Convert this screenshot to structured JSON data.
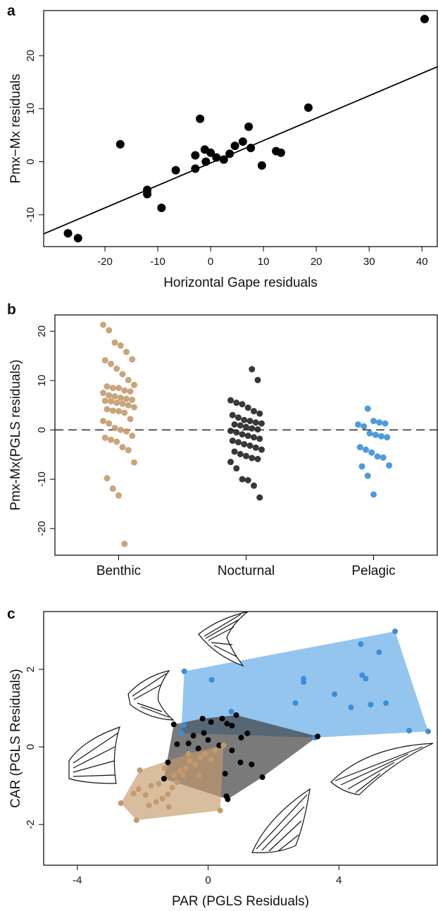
{
  "chart_data": [
    {
      "type": "scatter",
      "panel": "a",
      "x_label": "Horizontal Gape residuals",
      "y_label": "Pmx−Mx residuals",
      "color": "#000000",
      "x": [
        40.5,
        -27.0,
        -25.1,
        -17.1,
        -12.0,
        -12.0,
        -9.3,
        -6.6,
        -2.9,
        -2.9,
        -2.0,
        -1.1,
        -0.9,
        0,
        1.1,
        2.5,
        3.6,
        4.6,
        6.1,
        7.2,
        7.6,
        9.7,
        12.4,
        13.3,
        18.5
      ],
      "y": [
        26.9,
        -13.5,
        -14.4,
        3.3,
        -5.3,
        -6.1,
        -8.7,
        -1.6,
        1.2,
        -1.3,
        8.1,
        2.3,
        0.0,
        1.7,
        0.8,
        0.4,
        1.5,
        3.0,
        3.8,
        6.6,
        2.6,
        -0.7,
        2.0,
        1.7,
        10.2
      ],
      "fit_line": {
        "x": [
          -31.6,
          42.9
        ],
        "y": [
          -13.6,
          17.9
        ]
      },
      "xlim": [
        -31.6,
        42.9
      ],
      "ylim": [
        -16.0,
        28.5
      ],
      "xticks": [
        -20,
        -10,
        0,
        10,
        20,
        30,
        40
      ],
      "yticks": [
        -10,
        0,
        10,
        20
      ]
    },
    {
      "type": "strip",
      "panel": "b",
      "y_label": "Pmx-Mx(PGLS residuals)",
      "categories": [
        "Benthic",
        "Nocturnal",
        "Pelagic"
      ],
      "colors": [
        "#c49a6c",
        "#222222",
        "#3a8fd8"
      ],
      "values": [
        [
          21.3,
          20.2,
          17.7,
          17.1,
          15.8,
          14.3,
          14.1,
          13.4,
          12.4,
          11.3,
          10.1,
          9.1,
          8.8,
          8.5,
          8.5,
          8.0,
          7.8,
          7.5,
          7.0,
          6.8,
          6.5,
          6.3,
          6.1,
          5.9,
          5.8,
          5.5,
          5.3,
          5.0,
          4.6,
          4.2,
          3.9,
          3.8,
          3.5,
          2.2,
          1.8,
          1.3,
          0.4,
          0.0,
          -0.3,
          -1.2,
          -1.6,
          -2.0,
          -2.4,
          -3.5,
          -4.1,
          -6.6,
          -9.8,
          -11.9,
          -13.3,
          -23.1
        ],
        [
          12.3,
          10.1,
          6.0,
          5.5,
          5.2,
          4.5,
          3.8,
          3.3,
          3.0,
          2.5,
          2.0,
          1.8,
          1.5,
          1.3,
          1.1,
          0.9,
          0.6,
          0.3,
          0.1,
          -0.2,
          -0.5,
          -0.9,
          -1.2,
          -1.5,
          -1.8,
          -2.2,
          -2.5,
          -2.9,
          -3.2,
          -3.6,
          -4.0,
          -4.4,
          -4.9,
          -5.3,
          -5.7,
          -5.9,
          -6.5,
          -7.8,
          -10.0,
          -10.2,
          -11.3,
          -13.7
        ],
        [
          4.3,
          1.8,
          1.5,
          1.3,
          1.1,
          0.7,
          -0.7,
          -1.0,
          -1.3,
          -1.5,
          -3.5,
          -4.0,
          -4.6,
          -5.4,
          -5.6,
          -7.2,
          -7.4,
          -9.3,
          -13.1
        ]
      ],
      "hline": 0,
      "ylim": [
        -25.4,
        23.3
      ],
      "yticks": [
        -20,
        -10,
        0,
        10,
        20
      ]
    },
    {
      "type": "hull-scatter",
      "panel": "c",
      "x_label": "PAR (PGLS Residuals)",
      "y_label": "CAR (PGLS Residuals)",
      "series": [
        {
          "color": "#3a8fd8",
          "hull_color": "#5aa6e6",
          "x": [
            5.72,
            4.67,
            5.23,
            4.71,
            4.82,
            2.92,
            2.92,
            0.11,
            -0.73,
            2.67,
            3.87,
            4.37,
            4.97,
            5.44,
            6.15,
            6.73,
            -0.75,
            0.71,
            3.27,
            -0.82
          ],
          "y": [
            2.98,
            2.65,
            2.44,
            1.85,
            1.76,
            1.76,
            1.67,
            1.73,
            1.95,
            1.13,
            1.36,
            1.02,
            1.09,
            1.13,
            0.42,
            0.4,
            0.56,
            0.91,
            0.24,
            0.36
          ]
        },
        {
          "color": "#000000",
          "hull_color": "#333333",
          "x": [
            0.86,
            0.43,
            -0.17,
            0.09,
            0.58,
            0.73,
            -1.05,
            1.2,
            1.01,
            -0.45,
            -0.6,
            -0.3,
            -0.95,
            -1.23,
            0,
            0.34,
            0.73,
            0.99,
            1.33,
            0.52,
            0.56,
            0.6,
            3.35,
            1.66,
            -1.35,
            -0.13
          ],
          "y": [
            0.82,
            0.73,
            0.73,
            0.64,
            0.6,
            0.55,
            0.58,
            0.35,
            0.24,
            0.29,
            0.09,
            -0.04,
            0.07,
            -0.4,
            0.18,
            0.04,
            -0.09,
            -0.4,
            -0.45,
            -0.69,
            -1.27,
            -1.35,
            0.27,
            -0.78,
            -0.82,
            0.36
          ]
        },
        {
          "color": "#c49a6c",
          "hull_color": "#c49a6c",
          "x": [
            -2.67,
            -2.19,
            -2.09,
            -2.13,
            -1.91,
            -1.74,
            -1.59,
            -1.4,
            -1.23,
            -1.1,
            -0.95,
            -0.77,
            -0.69,
            -0.56,
            -0.39,
            -0.24,
            -0.09,
            0.09,
            0.22,
            0.47,
            0.37,
            -0.86,
            -1.51,
            -1.03,
            -0.6,
            -0.28,
            -1.2,
            -1.81,
            -2.28,
            -1.33
          ],
          "y": [
            -1.45,
            -1.89,
            -0.6,
            -1.09,
            -1.24,
            -1.0,
            -1.42,
            -1.33,
            -1.22,
            -1.05,
            -0.91,
            -0.73,
            -0.55,
            -0.36,
            -0.45,
            -0.27,
            -0.18,
            -0.33,
            -0.09,
            0.04,
            -1.64,
            -0.62,
            -0.95,
            -0.73,
            -0.18,
            -0.73,
            -1.55,
            -1.51,
            -1.2,
            -0.55
          ]
        }
      ],
      "xlim": [
        -5.03,
        7.01
      ],
      "ylim": [
        -3.05,
        3.49
      ],
      "xticks": [
        -4,
        0,
        4
      ],
      "yticks": [
        -2,
        0,
        2
      ]
    }
  ]
}
